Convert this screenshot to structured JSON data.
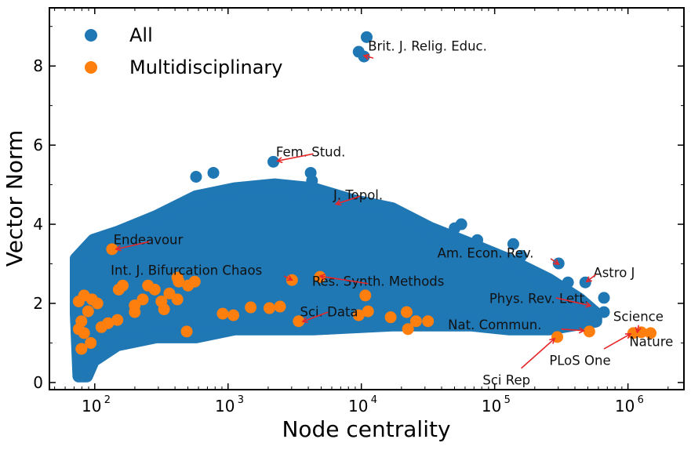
{
  "chart_data": {
    "type": "scatter",
    "xlabel": "Node centrality",
    "ylabel": "Vector Norm",
    "xscale": "log",
    "coordinate_note": "x values stored as log10(Node centrality)",
    "xlim_log10": [
      1.66,
      6.42
    ],
    "ylim": [
      -0.18,
      9.47
    ],
    "x_ticks": [
      {
        "log10": 2,
        "label": "10",
        "exp": "2"
      },
      {
        "log10": 3,
        "label": "10",
        "exp": "3"
      },
      {
        "log10": 4,
        "label": "10",
        "exp": "4"
      },
      {
        "log10": 5,
        "label": "10",
        "exp": "5"
      },
      {
        "log10": 6,
        "label": "10",
        "exp": "6"
      }
    ],
    "y_ticks": [
      0,
      2,
      4,
      6,
      8
    ],
    "grid": false,
    "legend": {
      "placement": "top-left",
      "entries": [
        "All",
        "Multidisciplinary"
      ]
    },
    "colors": {
      "All": "#1f77b4",
      "Multidisciplinary": "#ff7f0e",
      "arrow": "#e8272a"
    },
    "series": [
      {
        "name": "All",
        "dense_region_envelope": [
          [
            1.86,
            3.13
          ],
          [
            1.99,
            3.6
          ],
          [
            2.17,
            3.8
          ],
          [
            2.46,
            4.2
          ],
          [
            2.76,
            4.7
          ],
          [
            3.05,
            4.9
          ],
          [
            3.35,
            5.0
          ],
          [
            3.64,
            4.9
          ],
          [
            3.94,
            4.6
          ],
          [
            4.23,
            4.4
          ],
          [
            4.52,
            3.9
          ],
          [
            4.82,
            3.5
          ],
          [
            5.11,
            3.1
          ],
          [
            5.41,
            2.6
          ],
          [
            5.64,
            2.1
          ],
          [
            5.76,
            1.75
          ],
          [
            5.76,
            1.55
          ],
          [
            5.41,
            1.35
          ],
          [
            5.11,
            1.35
          ],
          [
            4.82,
            1.45
          ],
          [
            4.23,
            1.45
          ],
          [
            3.64,
            1.35
          ],
          [
            3.05,
            1.35
          ],
          [
            2.76,
            1.15
          ],
          [
            2.46,
            1.15
          ],
          [
            2.17,
            0.95
          ],
          [
            1.99,
            0.55
          ],
          [
            1.94,
            0.16
          ],
          [
            1.88,
            0.16
          ],
          [
            1.86,
            1.75
          ]
        ],
        "points": [
          [
            4.04,
            8.73
          ],
          [
            3.98,
            8.36
          ],
          [
            4.02,
            8.24
          ],
          [
            3.34,
            5.58
          ],
          [
            2.76,
            5.2
          ],
          [
            2.89,
            5.3
          ],
          [
            3.62,
            5.3
          ],
          [
            3.63,
            5.1
          ],
          [
            5.48,
            3.01
          ],
          [
            5.35,
            2.53
          ],
          [
            5.44,
            2.53
          ],
          [
            5.55,
            2.53
          ],
          [
            5.68,
            2.53
          ],
          [
            5.82,
            1.78
          ],
          [
            5.82,
            2.14
          ],
          [
            5.64,
            1.7
          ],
          [
            5.7,
            1.45
          ],
          [
            5.2,
            3.2
          ],
          [
            5.14,
            3.5
          ],
          [
            4.87,
            3.6
          ],
          [
            4.7,
            3.9
          ],
          [
            4.75,
            4.0
          ],
          [
            4.52,
            3.7
          ],
          [
            4.35,
            4.2
          ],
          [
            4.23,
            4.3
          ],
          [
            4.7,
            3.2
          ],
          [
            3.2,
            4.9
          ],
          [
            3.5,
            4.8
          ],
          [
            2.1,
            3.7
          ],
          [
            1.95,
            0.3
          ],
          [
            1.93,
            0.5
          ],
          [
            2.0,
            0.7
          ],
          [
            2.05,
            0.9
          ],
          [
            5.0,
            1.5
          ],
          [
            5.3,
            1.5
          ],
          [
            5.55,
            1.6
          ]
        ]
      },
      {
        "name": "Multidisciplinary",
        "points": [
          [
            2.13,
            3.37
          ],
          [
            3.48,
            2.59
          ],
          [
            3.69,
            2.67
          ],
          [
            4.03,
            2.2
          ],
          [
            3.53,
            1.55
          ],
          [
            3.98,
            1.7
          ],
          [
            4.22,
            1.65
          ],
          [
            4.34,
            1.78
          ],
          [
            4.41,
            1.55
          ],
          [
            4.5,
            1.55
          ],
          [
            5.47,
            1.15
          ],
          [
            5.71,
            1.29
          ],
          [
            6.04,
            1.25
          ],
          [
            6.1,
            1.27
          ],
          [
            6.17,
            1.25
          ],
          [
            2.69,
            1.29
          ],
          [
            2.96,
            1.74
          ],
          [
            3.04,
            1.7
          ],
          [
            3.17,
            1.9
          ],
          [
            3.31,
            1.88
          ],
          [
            3.39,
            1.92
          ],
          [
            2.36,
            2.1
          ],
          [
            2.18,
            2.35
          ],
          [
            2.21,
            2.45
          ],
          [
            2.5,
            2.05
          ],
          [
            2.56,
            2.25
          ],
          [
            2.63,
            2.55
          ],
          [
            2.7,
            2.45
          ],
          [
            2.75,
            2.55
          ],
          [
            2.62,
            2.1
          ],
          [
            2.52,
            1.85
          ],
          [
            2.3,
            1.78
          ],
          [
            2.17,
            1.58
          ],
          [
            1.88,
            1.35
          ],
          [
            1.9,
            1.55
          ],
          [
            1.88,
            2.05
          ],
          [
            1.92,
            2.2
          ],
          [
            1.98,
            2.1
          ],
          [
            2.02,
            2.0
          ],
          [
            1.95,
            1.8
          ],
          [
            1.92,
            1.25
          ],
          [
            1.97,
            1.0
          ],
          [
            2.05,
            1.4
          ],
          [
            2.1,
            1.5
          ],
          [
            1.9,
            0.85
          ],
          [
            2.4,
            2.45
          ],
          [
            2.45,
            2.35
          ],
          [
            4.05,
            1.8
          ],
          [
            4.35,
            1.35
          ],
          [
            2.3,
            1.95
          ],
          [
            2.62,
            2.65
          ]
        ]
      }
    ],
    "annotations": [
      {
        "text": "Brit. J. Relig. Educ.",
        "text_pos": [
          4.05,
          8.48
        ],
        "arrow_from": [
          4.09,
          8.2
        ],
        "arrow_to": [
          4.02,
          8.26
        ]
      },
      {
        "text": "Fem. Stud.",
        "text_pos": [
          3.36,
          5.8
        ],
        "arrow_from": [
          3.64,
          5.78
        ],
        "arrow_to": [
          3.37,
          5.6
        ]
      },
      {
        "text": "J. Topol.",
        "text_pos": [
          3.79,
          4.71
        ],
        "arrow_from": [
          3.99,
          4.71
        ],
        "arrow_to": [
          3.81,
          4.51
        ]
      },
      {
        "text": "Endeavour",
        "text_pos": [
          2.14,
          3.58
        ],
        "arrow_from": [
          2.41,
          3.56
        ],
        "arrow_to": [
          2.16,
          3.37
        ]
      },
      {
        "text": "Int. J. Bifurcation Chaos",
        "text_pos": [
          2.12,
          2.81
        ],
        "arrow_from": [
          3.42,
          2.69
        ],
        "arrow_to": [
          3.48,
          2.59
        ]
      },
      {
        "text": "Res. Synth. Methods",
        "text_pos": [
          3.63,
          2.53
        ],
        "arrow_from": [
          4.05,
          2.5
        ],
        "arrow_to": [
          3.69,
          2.69
        ]
      },
      {
        "text": "Sci. Data",
        "text_pos": [
          3.54,
          1.76
        ],
        "arrow_from": [
          3.75,
          1.78
        ],
        "arrow_to": [
          3.56,
          1.54
        ]
      },
      {
        "text": "Am. Econ. Rev.",
        "text_pos": [
          4.57,
          3.25
        ],
        "arrow_from": [
          5.42,
          3.13
        ],
        "arrow_to": [
          5.48,
          2.99
        ]
      },
      {
        "text": "Astro J",
        "text_pos": [
          5.74,
          2.75
        ],
        "arrow_from": [
          5.76,
          2.73
        ],
        "arrow_to": [
          5.69,
          2.55
        ]
      },
      {
        "text": "Phys. Rev. Lett.",
        "text_pos": [
          4.96,
          2.1
        ],
        "arrow_from": [
          5.46,
          2.14
        ],
        "arrow_to": [
          5.72,
          1.94
        ]
      },
      {
        "text": "Nat. Commun.",
        "text_pos": [
          4.65,
          1.43
        ],
        "arrow_from": [
          5.5,
          1.35
        ],
        "arrow_to": [
          5.67,
          1.31
        ]
      },
      {
        "text": "Science",
        "text_pos": [
          5.89,
          1.64
        ],
        "arrow_from": [
          6.08,
          1.45
        ],
        "arrow_to": [
          6.07,
          1.27
        ]
      },
      {
        "text": "Nature",
        "text_pos": [
          6.01,
          1.01
        ],
        "arrow_from": [
          5.82,
          0.85
        ],
        "arrow_to": [
          6.02,
          1.23
        ]
      },
      {
        "text": "PLoS One",
        "text_pos": [
          5.41,
          0.53
        ]
      },
      {
        "text": "Sci Rep",
        "text_pos": [
          4.91,
          0.04
        ],
        "arrow_from": [
          5.2,
          0.36
        ],
        "arrow_to": [
          5.45,
          1.11
        ]
      }
    ]
  }
}
